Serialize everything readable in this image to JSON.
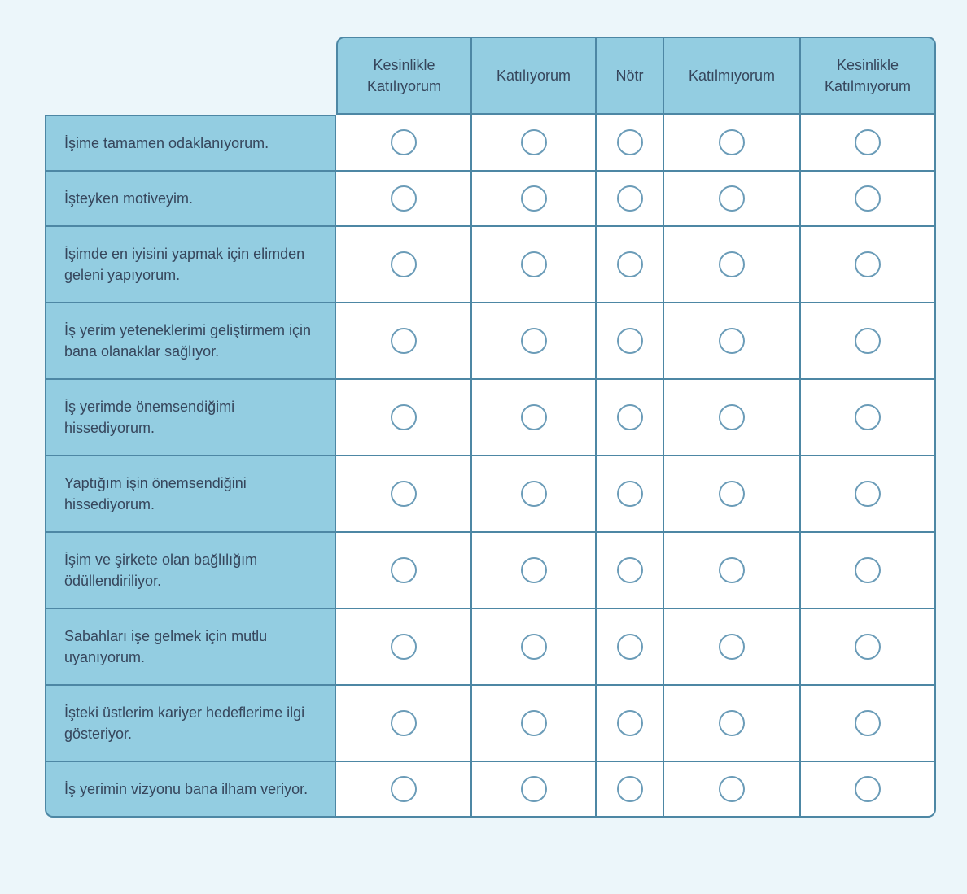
{
  "colors": {
    "page_background": "#ecf6fa",
    "cell_fill": "#93cde1",
    "grid_border": "#4d87a4",
    "radio_border": "#6b9cb8",
    "text": "#36465c",
    "answer_cell_fill": "#ffffff"
  },
  "matrix": {
    "scale": [
      "Kesinlikle Katılıyorum",
      "Katılıyorum",
      "Nötr",
      "Katılmıyorum",
      "Kesinlikle Katılmıyorum"
    ],
    "questions": [
      "İşime tamamen odaklanıyorum.",
      "İşteyken motiveyim.",
      "İşimde en iyisini yapmak için elimden geleni yapıyorum.",
      "İş yerim yeteneklerimi geliştirmem için bana olanaklar sağlıyor.",
      "İş yerimde önemsendiğimi hissediyorum.",
      "Yaptığım işin önemsendiğini hissediyorum.",
      "İşim ve şirkete olan bağlılığım ödüllendiriliyor.",
      "Sabahları işe gelmek için mutlu uyanıyorum.",
      "İşteki üstlerim kariyer hedeflerime ilgi gösteriyor.",
      "İş yerimin vizyonu bana ilham veriyor."
    ],
    "selection_state": "none-selected"
  }
}
